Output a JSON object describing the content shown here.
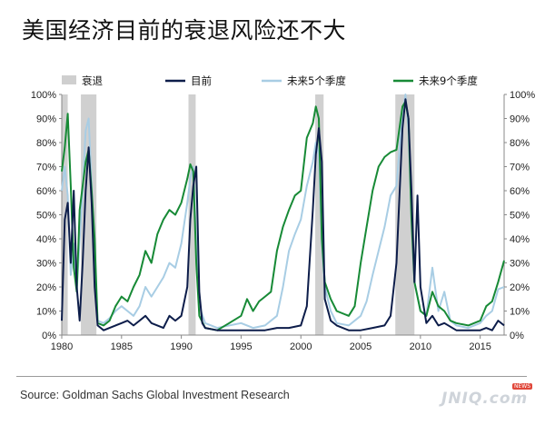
{
  "title": "美国经济目前的衰退风险还不大",
  "source": "Source: Goldman Sachs Global Investment Research",
  "watermark": "JNIQ.com",
  "watermark_badge": "NEWS",
  "chart_data": {
    "type": "line",
    "title": "美国经济目前的衰退风险还不大",
    "legend": [
      "衰退",
      "目前",
      "未来5个季度",
      "未来9个季度"
    ],
    "legend_position": "top",
    "x_range": [
      1980,
      2017
    ],
    "x_ticks": [
      "1980",
      "1985",
      "1990",
      "1995",
      "2000",
      "2005",
      "2010",
      "2015"
    ],
    "y_range": [
      0,
      100
    ],
    "y_ticks": [
      "0%",
      "10%",
      "20%",
      "30%",
      "40%",
      "50%",
      "60%",
      "70%",
      "80%",
      "90%",
      "100%"
    ],
    "y_axis_right": true,
    "grid": false,
    "recessions": [
      [
        1980.0,
        1980.5
      ],
      [
        1981.6,
        1982.9
      ],
      [
        1990.6,
        1991.2
      ],
      [
        2001.2,
        2001.9
      ],
      [
        2007.9,
        2009.5
      ]
    ],
    "series": [
      {
        "name": "目前",
        "color": "#0d1d4a",
        "points": [
          [
            1980.0,
            6
          ],
          [
            1980.25,
            48
          ],
          [
            1980.5,
            55
          ],
          [
            1980.75,
            30
          ],
          [
            1981.0,
            60
          ],
          [
            1981.25,
            20
          ],
          [
            1981.5,
            6
          ],
          [
            1981.75,
            30
          ],
          [
            1982.0,
            60
          ],
          [
            1982.25,
            78
          ],
          [
            1982.5,
            55
          ],
          [
            1982.75,
            20
          ],
          [
            1983.0,
            4
          ],
          [
            1983.5,
            2
          ],
          [
            1984.0,
            3
          ],
          [
            1984.5,
            4
          ],
          [
            1985.0,
            5
          ],
          [
            1985.5,
            6
          ],
          [
            1986.0,
            4
          ],
          [
            1986.5,
            6
          ],
          [
            1987.0,
            8
          ],
          [
            1987.5,
            5
          ],
          [
            1988.0,
            4
          ],
          [
            1988.5,
            3
          ],
          [
            1989.0,
            8
          ],
          [
            1989.5,
            6
          ],
          [
            1990.0,
            8
          ],
          [
            1990.5,
            20
          ],
          [
            1990.75,
            48
          ],
          [
            1991.0,
            62
          ],
          [
            1991.25,
            70
          ],
          [
            1991.5,
            18
          ],
          [
            1991.75,
            5
          ],
          [
            1992.0,
            3
          ],
          [
            1993.0,
            2
          ],
          [
            1994.0,
            2
          ],
          [
            1995.0,
            2
          ],
          [
            1996.0,
            2
          ],
          [
            1997.0,
            2
          ],
          [
            1998.0,
            3
          ],
          [
            1999.0,
            3
          ],
          [
            2000.0,
            4
          ],
          [
            2000.5,
            12
          ],
          [
            2001.0,
            52
          ],
          [
            2001.25,
            75
          ],
          [
            2001.5,
            86
          ],
          [
            2001.75,
            72
          ],
          [
            2002.0,
            15
          ],
          [
            2002.5,
            6
          ],
          [
            2003.0,
            4
          ],
          [
            2004.0,
            2
          ],
          [
            2005.0,
            2
          ],
          [
            2006.0,
            3
          ],
          [
            2007.0,
            4
          ],
          [
            2007.5,
            8
          ],
          [
            2008.0,
            30
          ],
          [
            2008.5,
            86
          ],
          [
            2008.75,
            98
          ],
          [
            2009.0,
            90
          ],
          [
            2009.25,
            60
          ],
          [
            2009.5,
            22
          ],
          [
            2009.75,
            58
          ],
          [
            2010.0,
            20
          ],
          [
            2010.5,
            5
          ],
          [
            2011.0,
            8
          ],
          [
            2011.5,
            4
          ],
          [
            2012.0,
            5
          ],
          [
            2013.0,
            2
          ],
          [
            2014.0,
            2
          ],
          [
            2015.0,
            2
          ],
          [
            2015.5,
            3
          ],
          [
            2016.0,
            2
          ],
          [
            2016.5,
            6
          ],
          [
            2017.0,
            4
          ]
        ]
      },
      {
        "name": "未来5个季度",
        "color": "#a8cde4",
        "points": [
          [
            1980.0,
            60
          ],
          [
            1980.25,
            70
          ],
          [
            1980.5,
            58
          ],
          [
            1980.75,
            25
          ],
          [
            1981.0,
            38
          ],
          [
            1981.25,
            18
          ],
          [
            1981.5,
            40
          ],
          [
            1981.75,
            60
          ],
          [
            1982.0,
            85
          ],
          [
            1982.25,
            90
          ],
          [
            1982.5,
            62
          ],
          [
            1982.75,
            30
          ],
          [
            1983.0,
            6
          ],
          [
            1983.5,
            5
          ],
          [
            1984.0,
            7
          ],
          [
            1984.5,
            10
          ],
          [
            1985.0,
            12
          ],
          [
            1985.5,
            10
          ],
          [
            1986.0,
            8
          ],
          [
            1986.5,
            12
          ],
          [
            1987.0,
            20
          ],
          [
            1987.5,
            16
          ],
          [
            1988.0,
            20
          ],
          [
            1988.5,
            24
          ],
          [
            1989.0,
            30
          ],
          [
            1989.5,
            28
          ],
          [
            1990.0,
            38
          ],
          [
            1990.5,
            55
          ],
          [
            1990.75,
            65
          ],
          [
            1991.0,
            70
          ],
          [
            1991.25,
            38
          ],
          [
            1991.5,
            12
          ],
          [
            1992.0,
            5
          ],
          [
            1993.0,
            3
          ],
          [
            1994.0,
            4
          ],
          [
            1995.0,
            5
          ],
          [
            1996.0,
            3
          ],
          [
            1997.0,
            4
          ],
          [
            1998.0,
            8
          ],
          [
            1998.5,
            20
          ],
          [
            1999.0,
            35
          ],
          [
            1999.5,
            42
          ],
          [
            2000.0,
            48
          ],
          [
            2000.5,
            62
          ],
          [
            2001.0,
            72
          ],
          [
            2001.25,
            80
          ],
          [
            2001.5,
            75
          ],
          [
            2001.75,
            38
          ],
          [
            2002.0,
            20
          ],
          [
            2002.5,
            10
          ],
          [
            2003.0,
            5
          ],
          [
            2004.0,
            4
          ],
          [
            2005.0,
            8
          ],
          [
            2005.5,
            14
          ],
          [
            2006.0,
            25
          ],
          [
            2006.5,
            35
          ],
          [
            2007.0,
            45
          ],
          [
            2007.5,
            58
          ],
          [
            2008.0,
            62
          ],
          [
            2008.5,
            92
          ],
          [
            2008.75,
            100
          ],
          [
            2009.0,
            85
          ],
          [
            2009.25,
            50
          ],
          [
            2009.5,
            22
          ],
          [
            2010.0,
            10
          ],
          [
            2010.5,
            8
          ],
          [
            2011.0,
            28
          ],
          [
            2011.5,
            10
          ],
          [
            2012.0,
            18
          ],
          [
            2012.5,
            6
          ],
          [
            2013.0,
            4
          ],
          [
            2014.0,
            3
          ],
          [
            2015.0,
            5
          ],
          [
            2015.5,
            8
          ],
          [
            2016.0,
            10
          ],
          [
            2016.5,
            19
          ],
          [
            2017.0,
            20
          ]
        ]
      },
      {
        "name": "未来9个季度",
        "color": "#178a36",
        "points": [
          [
            1980.0,
            68
          ],
          [
            1980.25,
            78
          ],
          [
            1980.5,
            92
          ],
          [
            1980.75,
            62
          ],
          [
            1981.0,
            28
          ],
          [
            1981.25,
            18
          ],
          [
            1981.5,
            52
          ],
          [
            1981.75,
            62
          ],
          [
            1982.0,
            72
          ],
          [
            1982.25,
            77
          ],
          [
            1982.5,
            60
          ],
          [
            1982.75,
            40
          ],
          [
            1983.0,
            5
          ],
          [
            1983.5,
            4
          ],
          [
            1984.0,
            6
          ],
          [
            1984.5,
            12
          ],
          [
            1985.0,
            16
          ],
          [
            1985.5,
            14
          ],
          [
            1986.0,
            20
          ],
          [
            1986.5,
            25
          ],
          [
            1987.0,
            35
          ],
          [
            1987.5,
            30
          ],
          [
            1988.0,
            42
          ],
          [
            1988.5,
            48
          ],
          [
            1989.0,
            52
          ],
          [
            1989.5,
            50
          ],
          [
            1990.0,
            55
          ],
          [
            1990.5,
            65
          ],
          [
            1990.75,
            71
          ],
          [
            1991.0,
            68
          ],
          [
            1991.25,
            30
          ],
          [
            1991.5,
            8
          ],
          [
            1992.0,
            3
          ],
          [
            1993.0,
            2
          ],
          [
            1994.0,
            5
          ],
          [
            1995.0,
            8
          ],
          [
            1995.5,
            15
          ],
          [
            1996.0,
            10
          ],
          [
            1996.5,
            14
          ],
          [
            1997.0,
            16
          ],
          [
            1997.5,
            18
          ],
          [
            1998.0,
            35
          ],
          [
            1998.5,
            45
          ],
          [
            1999.0,
            52
          ],
          [
            1999.5,
            58
          ],
          [
            2000.0,
            60
          ],
          [
            2000.5,
            82
          ],
          [
            2001.0,
            88
          ],
          [
            2001.25,
            95
          ],
          [
            2001.5,
            90
          ],
          [
            2001.75,
            40
          ],
          [
            2002.0,
            22
          ],
          [
            2002.5,
            15
          ],
          [
            2003.0,
            10
          ],
          [
            2004.0,
            8
          ],
          [
            2004.5,
            12
          ],
          [
            2005.0,
            30
          ],
          [
            2005.5,
            45
          ],
          [
            2006.0,
            60
          ],
          [
            2006.5,
            70
          ],
          [
            2007.0,
            74
          ],
          [
            2007.5,
            76
          ],
          [
            2008.0,
            77
          ],
          [
            2008.5,
            95
          ],
          [
            2008.75,
            97
          ],
          [
            2009.0,
            90
          ],
          [
            2009.25,
            48
          ],
          [
            2009.5,
            22
          ],
          [
            2010.0,
            10
          ],
          [
            2010.5,
            8
          ],
          [
            2011.0,
            18
          ],
          [
            2011.5,
            12
          ],
          [
            2012.0,
            10
          ],
          [
            2012.5,
            6
          ],
          [
            2013.0,
            5
          ],
          [
            2014.0,
            4
          ],
          [
            2015.0,
            6
          ],
          [
            2015.5,
            12
          ],
          [
            2016.0,
            14
          ],
          [
            2016.5,
            22
          ],
          [
            2017.0,
            31
          ]
        ]
      }
    ]
  }
}
